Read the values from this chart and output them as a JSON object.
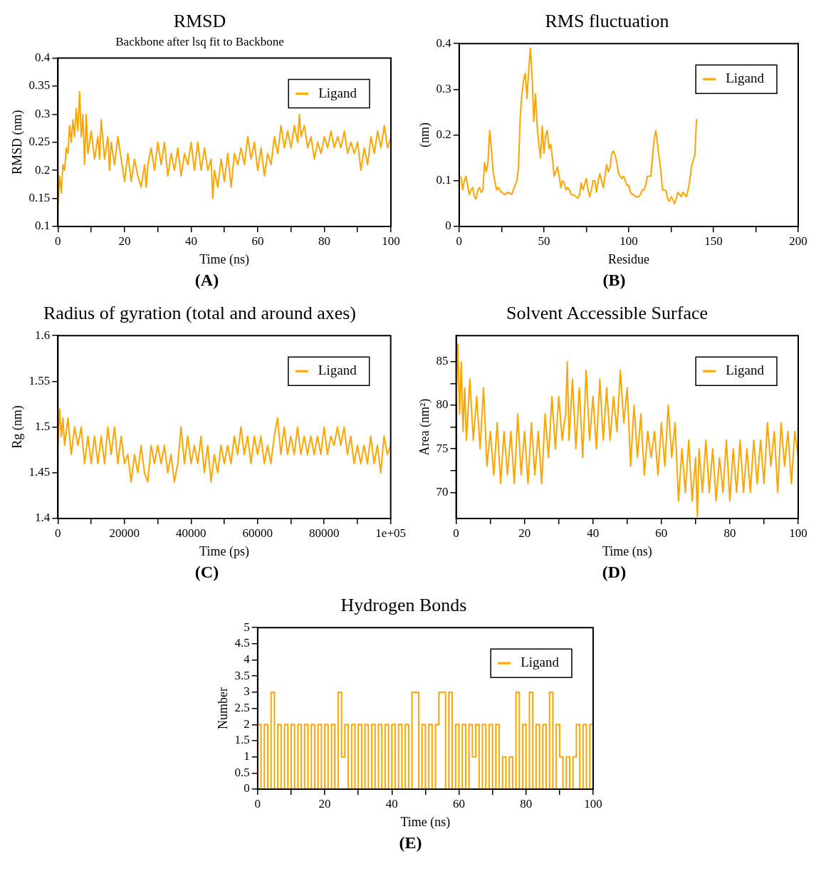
{
  "chart_data": [
    {
      "type": "line",
      "title": "RMSD",
      "subtitle": "Backbone after lsq fit to Backbone",
      "xlabel": "Time (ns)",
      "ylabel": "RMSD (nm)",
      "annotations": [
        "(A)"
      ],
      "legend": "top right",
      "grid": false,
      "xlim": [
        0,
        100
      ],
      "xticks": [
        0,
        {
          "value": 10,
          "label": null
        },
        20,
        {
          "value": 30,
          "label": null
        },
        40,
        {
          "value": 50,
          "label": null
        },
        60,
        {
          "value": 70,
          "label": null
        },
        80,
        {
          "value": 90,
          "label": null
        },
        100
      ],
      "ylim": [
        0.1,
        0.4
      ],
      "yticks": [
        0.1,
        0.15,
        0.2,
        0.25,
        0.3,
        0.35,
        0.4
      ],
      "series": [
        {
          "name": "Ligand",
          "color": "#ffa500",
          "x": [
            0,
            0.5,
            1,
            1.5,
            2,
            2.5,
            3,
            3.5,
            4,
            4.5,
            5,
            5.5,
            6,
            6.5,
            7,
            7.5,
            8,
            8.5,
            9,
            10,
            11,
            12,
            12.5,
            13,
            14,
            15,
            15.5,
            16,
            17,
            18,
            19,
            20,
            21,
            22,
            23,
            24,
            25,
            26,
            26.5,
            27,
            28,
            29,
            30,
            31,
            32,
            33,
            34,
            35,
            36,
            37,
            38,
            39,
            40,
            41,
            42,
            43,
            44,
            45,
            46,
            46.5,
            47,
            48,
            49,
            50,
            51,
            52,
            53,
            54,
            55,
            56,
            57,
            58,
            59,
            60,
            61,
            62,
            63,
            64,
            65,
            66,
            67,
            68,
            69,
            70,
            71,
            72,
            72.5,
            73,
            74,
            75,
            76,
            77,
            78,
            79,
            80,
            81,
            82,
            83,
            84,
            85,
            86,
            87,
            88,
            89,
            90,
            91,
            92,
            93,
            94,
            95,
            96,
            97,
            98,
            99,
            100
          ],
          "values": [
            0.14,
            0.19,
            0.16,
            0.21,
            0.2,
            0.24,
            0.23,
            0.28,
            0.25,
            0.29,
            0.26,
            0.31,
            0.27,
            0.34,
            0.26,
            0.3,
            0.21,
            0.3,
            0.23,
            0.27,
            0.22,
            0.26,
            0.22,
            0.29,
            0.22,
            0.26,
            0.2,
            0.25,
            0.21,
            0.26,
            0.22,
            0.18,
            0.23,
            0.18,
            0.22,
            0.19,
            0.17,
            0.21,
            0.17,
            0.21,
            0.24,
            0.2,
            0.25,
            0.21,
            0.25,
            0.19,
            0.23,
            0.2,
            0.24,
            0.19,
            0.23,
            0.21,
            0.25,
            0.2,
            0.25,
            0.2,
            0.24,
            0.2,
            0.22,
            0.15,
            0.2,
            0.17,
            0.22,
            0.18,
            0.23,
            0.17,
            0.23,
            0.21,
            0.24,
            0.21,
            0.26,
            0.22,
            0.25,
            0.2,
            0.24,
            0.19,
            0.23,
            0.21,
            0.26,
            0.23,
            0.28,
            0.24,
            0.27,
            0.24,
            0.28,
            0.25,
            0.3,
            0.26,
            0.28,
            0.24,
            0.26,
            0.22,
            0.25,
            0.23,
            0.26,
            0.24,
            0.27,
            0.24,
            0.26,
            0.24,
            0.27,
            0.23,
            0.25,
            0.23,
            0.25,
            0.2,
            0.24,
            0.21,
            0.26,
            0.23,
            0.27,
            0.24,
            0.28,
            0.24,
            0.26
          ]
        }
      ]
    },
    {
      "type": "line",
      "title": "RMS fluctuation",
      "xlabel": "Residue",
      "ylabel": "(nm)",
      "annotations": [
        "(B)"
      ],
      "legend": "top right",
      "grid": false,
      "xlim": [
        0,
        200
      ],
      "xticks": [
        0,
        {
          "value": 25,
          "label": null
        },
        50,
        {
          "value": 75,
          "label": null
        },
        100,
        {
          "value": 125,
          "label": null
        },
        150,
        {
          "value": 175,
          "label": null
        },
        200
      ],
      "ylim": [
        0,
        0.4
      ],
      "yticks": [
        0,
        0.1,
        0.2,
        0.3,
        0.4
      ],
      "series": [
        {
          "name": "Ligand",
          "color": "#ffa500",
          "x": [
            1,
            2,
            3,
            4,
            5,
            6,
            7,
            8,
            9,
            10,
            11,
            12,
            13,
            14,
            15,
            16,
            17,
            18,
            19,
            20,
            21,
            22,
            23,
            24,
            25,
            27,
            29,
            31,
            33,
            34,
            35,
            36,
            37,
            38,
            39,
            40,
            41,
            42,
            43,
            44,
            45,
            46,
            47,
            48,
            49,
            50,
            51,
            52,
            53,
            54,
            55,
            56,
            57,
            58,
            59,
            60,
            61,
            62,
            63,
            64,
            65,
            66,
            68,
            70,
            71,
            72,
            73,
            75,
            76,
            77,
            78,
            79,
            80,
            81,
            82,
            83,
            84,
            85,
            86,
            87,
            88,
            89,
            90,
            91,
            92,
            93,
            94,
            95,
            96,
            97,
            98,
            99,
            100,
            101,
            102,
            103,
            104,
            106,
            107,
            108,
            109,
            110,
            111,
            113,
            114,
            115,
            116,
            117,
            118,
            119,
            120,
            121,
            122,
            123,
            124,
            125,
            126,
            127,
            128,
            129,
            130,
            131,
            132,
            133,
            134,
            135,
            136,
            137,
            138,
            139,
            140
          ],
          "values": [
            0.11,
            0.08,
            0.1,
            0.11,
            0.09,
            0.07,
            0.08,
            0.085,
            0.065,
            0.06,
            0.08,
            0.085,
            0.075,
            0.08,
            0.14,
            0.12,
            0.14,
            0.21,
            0.17,
            0.12,
            0.1,
            0.08,
            0.085,
            0.08,
            0.075,
            0.07,
            0.075,
            0.07,
            0.09,
            0.1,
            0.13,
            0.24,
            0.29,
            0.32,
            0.335,
            0.28,
            0.34,
            0.39,
            0.33,
            0.23,
            0.29,
            0.22,
            0.18,
            0.15,
            0.22,
            0.16,
            0.2,
            0.21,
            0.17,
            0.18,
            0.15,
            0.11,
            0.12,
            0.13,
            0.11,
            0.085,
            0.1,
            0.095,
            0.08,
            0.085,
            0.08,
            0.07,
            0.068,
            0.062,
            0.07,
            0.095,
            0.08,
            0.105,
            0.08,
            0.065,
            0.08,
            0.1,
            0.1,
            0.075,
            0.1,
            0.115,
            0.1,
            0.085,
            0.11,
            0.135,
            0.12,
            0.13,
            0.16,
            0.165,
            0.155,
            0.14,
            0.115,
            0.11,
            0.105,
            0.11,
            0.1,
            0.09,
            0.09,
            0.075,
            0.07,
            0.07,
            0.065,
            0.065,
            0.07,
            0.08,
            0.08,
            0.09,
            0.11,
            0.11,
            0.15,
            0.19,
            0.21,
            0.18,
            0.15,
            0.12,
            0.08,
            0.08,
            0.078,
            0.06,
            0.055,
            0.065,
            0.06,
            0.05,
            0.06,
            0.075,
            0.07,
            0.065,
            0.075,
            0.07,
            0.065,
            0.08,
            0.1,
            0.13,
            0.145,
            0.155,
            0.235
          ]
        }
      ]
    },
    {
      "type": "line",
      "title": "Radius of gyration (total and around axes)",
      "xlabel": "Time (ps)",
      "ylabel": "Rg (nm)",
      "annotations": [
        "(C)"
      ],
      "legend": "top right",
      "grid": false,
      "xlim": [
        0,
        100000
      ],
      "xticks": [
        0,
        {
          "value": 10000,
          "label": null
        },
        20000,
        {
          "value": 30000,
          "label": null
        },
        40000,
        {
          "value": 50000,
          "label": null
        },
        60000,
        {
          "value": 70000,
          "label": null
        },
        80000,
        {
          "value": 90000,
          "label": null
        },
        {
          "value": 100000,
          "label": "1e+05"
        }
      ],
      "ylim": [
        1.4,
        1.6
      ],
      "yticks": [
        1.4,
        1.45,
        1.5,
        1.55,
        1.6
      ],
      "series": [
        {
          "name": "Ligand",
          "color": "#ffa500",
          "x": [
            0,
            500,
            1000,
            1500,
            2000,
            3000,
            4000,
            5000,
            6000,
            7000,
            8000,
            9000,
            10000,
            11000,
            12000,
            13000,
            14000,
            15000,
            16000,
            17000,
            18000,
            19000,
            20000,
            21000,
            22000,
            23000,
            24000,
            25000,
            26000,
            27000,
            28000,
            29000,
            30000,
            31000,
            32000,
            33000,
            34000,
            35000,
            36000,
            37000,
            38000,
            39000,
            40000,
            41000,
            42000,
            43000,
            44000,
            45000,
            46000,
            47000,
            48000,
            49000,
            50000,
            51000,
            52000,
            53000,
            54000,
            55000,
            56000,
            57000,
            58000,
            59000,
            60000,
            61000,
            62000,
            63000,
            64000,
            65000,
            66000,
            67000,
            68000,
            69000,
            70000,
            71000,
            72000,
            73000,
            74000,
            75000,
            76000,
            77000,
            78000,
            79000,
            80000,
            81000,
            82000,
            83000,
            84000,
            85000,
            86000,
            87000,
            88000,
            89000,
            90000,
            91000,
            92000,
            93000,
            94000,
            95000,
            96000,
            97000,
            98000,
            99000,
            100000
          ],
          "values": [
            1.48,
            1.52,
            1.49,
            1.51,
            1.48,
            1.51,
            1.47,
            1.5,
            1.48,
            1.5,
            1.46,
            1.49,
            1.46,
            1.49,
            1.46,
            1.49,
            1.46,
            1.5,
            1.47,
            1.5,
            1.46,
            1.49,
            1.46,
            1.47,
            1.44,
            1.47,
            1.45,
            1.48,
            1.45,
            1.44,
            1.48,
            1.46,
            1.48,
            1.46,
            1.48,
            1.45,
            1.47,
            1.44,
            1.46,
            1.5,
            1.46,
            1.49,
            1.46,
            1.48,
            1.46,
            1.49,
            1.45,
            1.48,
            1.44,
            1.47,
            1.45,
            1.48,
            1.46,
            1.48,
            1.46,
            1.49,
            1.47,
            1.5,
            1.47,
            1.49,
            1.46,
            1.49,
            1.47,
            1.49,
            1.46,
            1.48,
            1.46,
            1.49,
            1.51,
            1.47,
            1.5,
            1.47,
            1.49,
            1.47,
            1.5,
            1.47,
            1.49,
            1.47,
            1.49,
            1.47,
            1.49,
            1.47,
            1.5,
            1.47,
            1.49,
            1.48,
            1.5,
            1.48,
            1.5,
            1.47,
            1.49,
            1.46,
            1.48,
            1.46,
            1.48,
            1.46,
            1.49,
            1.46,
            1.48,
            1.45,
            1.49,
            1.47,
            1.48
          ]
        }
      ]
    },
    {
      "type": "line",
      "title": "Solvent Accessible Surface",
      "xlabel": "Time (ns)",
      "ylabel": "Area (nm²)",
      "annotations": [
        "(D)"
      ],
      "legend": "top right",
      "grid": false,
      "xlim": [
        0,
        100
      ],
      "xticks": [
        0,
        {
          "value": 10,
          "label": null
        },
        20,
        {
          "value": 30,
          "label": null
        },
        40,
        {
          "value": 50,
          "label": null
        },
        60,
        {
          "value": 70,
          "label": null
        },
        80,
        {
          "value": 90,
          "label": null
        },
        100
      ],
      "ylim": [
        67,
        88
      ],
      "yticks": [
        70,
        {
          "value": 72.5,
          "label": null
        },
        75,
        {
          "value": 77.5,
          "label": null
        },
        80,
        {
          "value": 82.5,
          "label": null
        },
        85
      ],
      "series": [
        {
          "name": "Ligand",
          "color": "#ffa500",
          "x": [
            0,
            0.5,
            1,
            1.5,
            2,
            2.5,
            3,
            4,
            5,
            6,
            7,
            8,
            9,
            10,
            11,
            12,
            13,
            14,
            15,
            16,
            17,
            18,
            19,
            20,
            21,
            22,
            23,
            24,
            25,
            26,
            27,
            28,
            29,
            30,
            31,
            32,
            32.5,
            33,
            34,
            35,
            36,
            37,
            38,
            39,
            40,
            41,
            42,
            43,
            44,
            45,
            46,
            47,
            48,
            49,
            50,
            51,
            52,
            53,
            54,
            55,
            56,
            57,
            58,
            59,
            60,
            61,
            62,
            63,
            64,
            65,
            66,
            67,
            68,
            69,
            70,
            70.5,
            71,
            72,
            73,
            74,
            75,
            76,
            77,
            78,
            79,
            80,
            81,
            82,
            83,
            84,
            85,
            86,
            87,
            88,
            89,
            90,
            91,
            92,
            93,
            94,
            95,
            96,
            97,
            98,
            99,
            100
          ],
          "values": [
            80,
            87,
            79,
            85,
            77,
            82,
            76,
            83,
            76,
            81,
            75,
            82,
            73,
            77,
            72,
            78,
            71,
            77,
            72,
            77,
            71,
            79,
            72,
            77,
            71,
            78,
            72,
            77,
            71,
            79,
            74,
            81,
            75,
            81,
            76,
            79,
            85,
            76,
            83,
            75,
            82,
            74,
            84,
            76,
            81,
            75,
            83,
            76,
            82,
            76,
            81,
            77,
            84,
            78,
            82,
            73,
            80,
            74,
            79,
            72,
            77,
            74,
            77,
            72,
            78,
            73,
            80,
            74,
            78,
            69,
            75,
            70,
            76,
            69,
            74,
            67.2,
            75,
            70,
            76,
            70,
            75,
            69,
            74,
            70,
            76,
            69,
            75,
            70,
            76,
            70,
            75,
            70,
            76,
            71,
            76,
            71,
            78,
            73,
            77,
            70,
            78,
            73,
            77,
            71,
            77,
            74
          ]
        }
      ]
    },
    {
      "type": "step",
      "title": "Hydrogen Bonds",
      "xlabel": "Time (ns)",
      "ylabel": "Number",
      "annotations": [
        "(E)"
      ],
      "legend": "top right",
      "grid": false,
      "xlim": [
        0,
        100
      ],
      "xticks": [
        0,
        {
          "value": 10,
          "label": null
        },
        20,
        {
          "value": 30,
          "label": null
        },
        40,
        {
          "value": 50,
          "label": null
        },
        60,
        {
          "value": 70,
          "label": null
        },
        80,
        {
          "value": 90,
          "label": null
        },
        100
      ],
      "ylim": [
        0,
        5
      ],
      "yticks": [
        0,
        0.5,
        1,
        1.5,
        2,
        2.5,
        3,
        3.5,
        4,
        4.5,
        5
      ],
      "series": [
        {
          "name": "Ligand",
          "color": "#ffa500",
          "x": [
            0,
            1,
            2,
            3,
            4,
            5,
            6,
            7,
            8,
            9,
            10,
            11,
            12,
            13,
            14,
            15,
            16,
            17,
            18,
            19,
            20,
            21,
            22,
            23,
            24,
            25,
            26,
            27,
            28,
            29,
            30,
            31,
            32,
            33,
            34,
            35,
            36,
            37,
            38,
            39,
            40,
            41,
            42,
            43,
            44,
            45,
            46,
            47,
            48,
            49,
            50,
            51,
            52,
            53,
            54,
            55,
            56,
            57,
            58,
            59,
            60,
            61,
            62,
            63,
            64,
            65,
            66,
            67,
            68,
            69,
            70,
            71,
            72,
            73,
            74,
            75,
            76,
            77,
            78,
            79,
            80,
            81,
            82,
            83,
            84,
            85,
            86,
            87,
            88,
            89,
            90,
            91,
            92,
            93,
            94,
            95,
            96,
            97,
            98,
            99,
            100
          ],
          "values": [
            0,
            2,
            0,
            2,
            0,
            3,
            0,
            2,
            0,
            2,
            0,
            2,
            0,
            2,
            0,
            2,
            0,
            2,
            0,
            2,
            0,
            2,
            0,
            2,
            0,
            3,
            1,
            2,
            0,
            2,
            0,
            2,
            0,
            2,
            0,
            2,
            0,
            2,
            0,
            2,
            0,
            2,
            0,
            2,
            0,
            2,
            0,
            3,
            3,
            0,
            2,
            0,
            2,
            0,
            2,
            3,
            3,
            0,
            3,
            0,
            2,
            0,
            2,
            0,
            2,
            1,
            2,
            0,
            2,
            0,
            2,
            0,
            2,
            0,
            1,
            0,
            1,
            0,
            3,
            0,
            2,
            0,
            3,
            0,
            2,
            0,
            2,
            0,
            3,
            0,
            2,
            1,
            0,
            1,
            0,
            1,
            2,
            0,
            2,
            0,
            2
          ]
        }
      ]
    }
  ]
}
